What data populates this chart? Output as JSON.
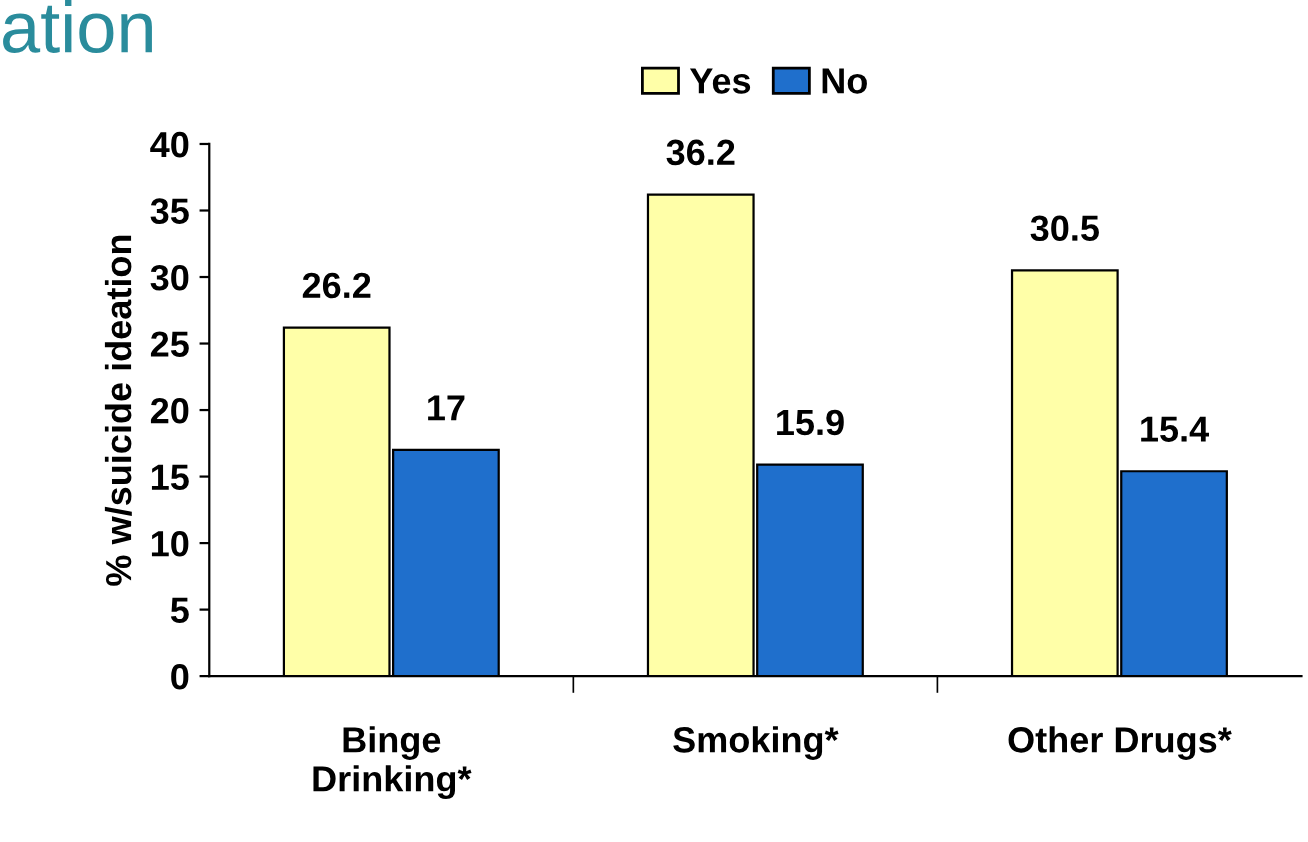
{
  "chart_data": {
    "type": "bar",
    "annotations": [
      "ation"
    ],
    "ylabel": "% w/suicide ideation",
    "categories": [
      "Binge\nDrinking*",
      "Smoking*",
      "Other Drugs*"
    ],
    "series": [
      {
        "name": "Yes",
        "color": "#ffffa8",
        "values": [
          26.2,
          36.2,
          30.5
        ]
      },
      {
        "name": "No",
        "color": "#1f6fcc",
        "values": [
          17,
          15.9,
          15.4
        ]
      }
    ],
    "ylim": [
      0,
      40
    ],
    "yticks": [
      0,
      5,
      10,
      15,
      20,
      25,
      30,
      35,
      40
    ],
    "data_labels": true,
    "legend": "top",
    "grid": false
  }
}
